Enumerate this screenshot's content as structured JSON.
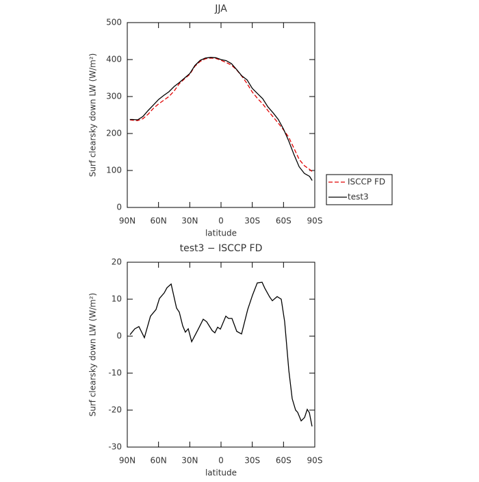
{
  "chart_data": [
    {
      "type": "line",
      "title": "JJA",
      "xlabel": "latitude",
      "ylabel": "Surf clearsky down LW (W/m²)",
      "x": [
        87.5,
        85,
        80,
        75,
        70,
        65,
        60,
        55,
        50,
        45,
        40,
        35,
        30,
        25,
        20,
        15,
        10,
        5,
        0,
        -5,
        -10,
        -15,
        -20,
        -25,
        -30,
        -35,
        -40,
        -45,
        -50,
        -55,
        -60,
        -65,
        -70,
        -75,
        -80,
        -85,
        -87.5
      ],
      "series": [
        {
          "name": "ISCCP FD",
          "color": "#e00000",
          "dash": true,
          "values": [
            237,
            236,
            235,
            240,
            252,
            268,
            280,
            290,
            300,
            315,
            335,
            348,
            360,
            382,
            395,
            402,
            404,
            403,
            398,
            392,
            385,
            372,
            355,
            335,
            312,
            295,
            280,
            262,
            245,
            228,
            210,
            190,
            160,
            130,
            113,
            103,
            97
          ]
        },
        {
          "name": "test3",
          "color": "#000000",
          "dash": false,
          "values": [
            238,
            238,
            237,
            246,
            262,
            277,
            292,
            303,
            313,
            327,
            338,
            350,
            362,
            384,
            398,
            404,
            406,
            405,
            400,
            397,
            389,
            373,
            356,
            345,
            322,
            308,
            294,
            272,
            256,
            238,
            212,
            180,
            143,
            110,
            92,
            84,
            73
          ]
        }
      ],
      "xlim": [
        90,
        -90
      ],
      "xticks": [
        {
          "value": 90,
          "label": "90N"
        },
        {
          "value": 60,
          "label": "60N"
        },
        {
          "value": 30,
          "label": "30N"
        },
        0,
        {
          "value": -30,
          "label": "30S"
        },
        {
          "value": -60,
          "label": "60S"
        },
        {
          "value": -90,
          "label": "90S"
        }
      ],
      "ylim": [
        0,
        500
      ],
      "yticks": [
        0,
        100,
        200,
        300,
        400,
        500
      ],
      "legend": "right"
    },
    {
      "type": "line",
      "title": "test3 − ISCCP FD",
      "xlabel": "latitude",
      "ylabel": "Surf clearsky down LW (W/m²)",
      "x": [
        87.4,
        82.8,
        78.8,
        73.6,
        67.7,
        62.4,
        59.1,
        54.5,
        51.9,
        47.9,
        42.7,
        40.1,
        36.8,
        34.2,
        31.5,
        28.2,
        24.3,
        21.7,
        17.1,
        13.8,
        8.5,
        5.9,
        3.3,
        0.6,
        -4.6,
        -7.2,
        -10.5,
        -15.1,
        -19.7,
        -25.6,
        -30.2,
        -34.8,
        -39.4,
        -42,
        -46.7,
        -49.3,
        -53.9,
        -57.8,
        -61.1,
        -65.1,
        -68.3,
        -71.6,
        -73.6,
        -76.9,
        -80.2,
        -82.8,
        -84.8,
        -87.4
      ],
      "values": [
        0.4,
        2,
        2.6,
        -0.4,
        5.4,
        7.2,
        10.2,
        11.7,
        13.1,
        14.1,
        7.6,
        6.5,
        2.8,
        1.1,
        2,
        -1.5,
        0.6,
        2,
        4.6,
        3.9,
        1.5,
        0.9,
        2.4,
        1.9,
        5.4,
        4.8,
        4.8,
        1.3,
        0.6,
        7.2,
        11.1,
        14.4,
        14.6,
        13,
        10.6,
        9.6,
        10.7,
        10,
        3.9,
        -9.3,
        -16.9,
        -20,
        -20.6,
        -22.9,
        -22,
        -19.8,
        -20.7,
        -24.4
      ],
      "color": "#000000",
      "xlim": [
        90,
        -90
      ],
      "xticks": [
        {
          "value": 90,
          "label": "90N"
        },
        {
          "value": 60,
          "label": "60N"
        },
        {
          "value": 30,
          "label": "30N"
        },
        0,
        {
          "value": -30,
          "label": "30S"
        },
        {
          "value": -60,
          "label": "60S"
        },
        {
          "value": -90,
          "label": "90S"
        }
      ],
      "ylim": [
        -30,
        20
      ],
      "yticks": [
        -30,
        -20,
        -10,
        0,
        10,
        20
      ]
    }
  ]
}
